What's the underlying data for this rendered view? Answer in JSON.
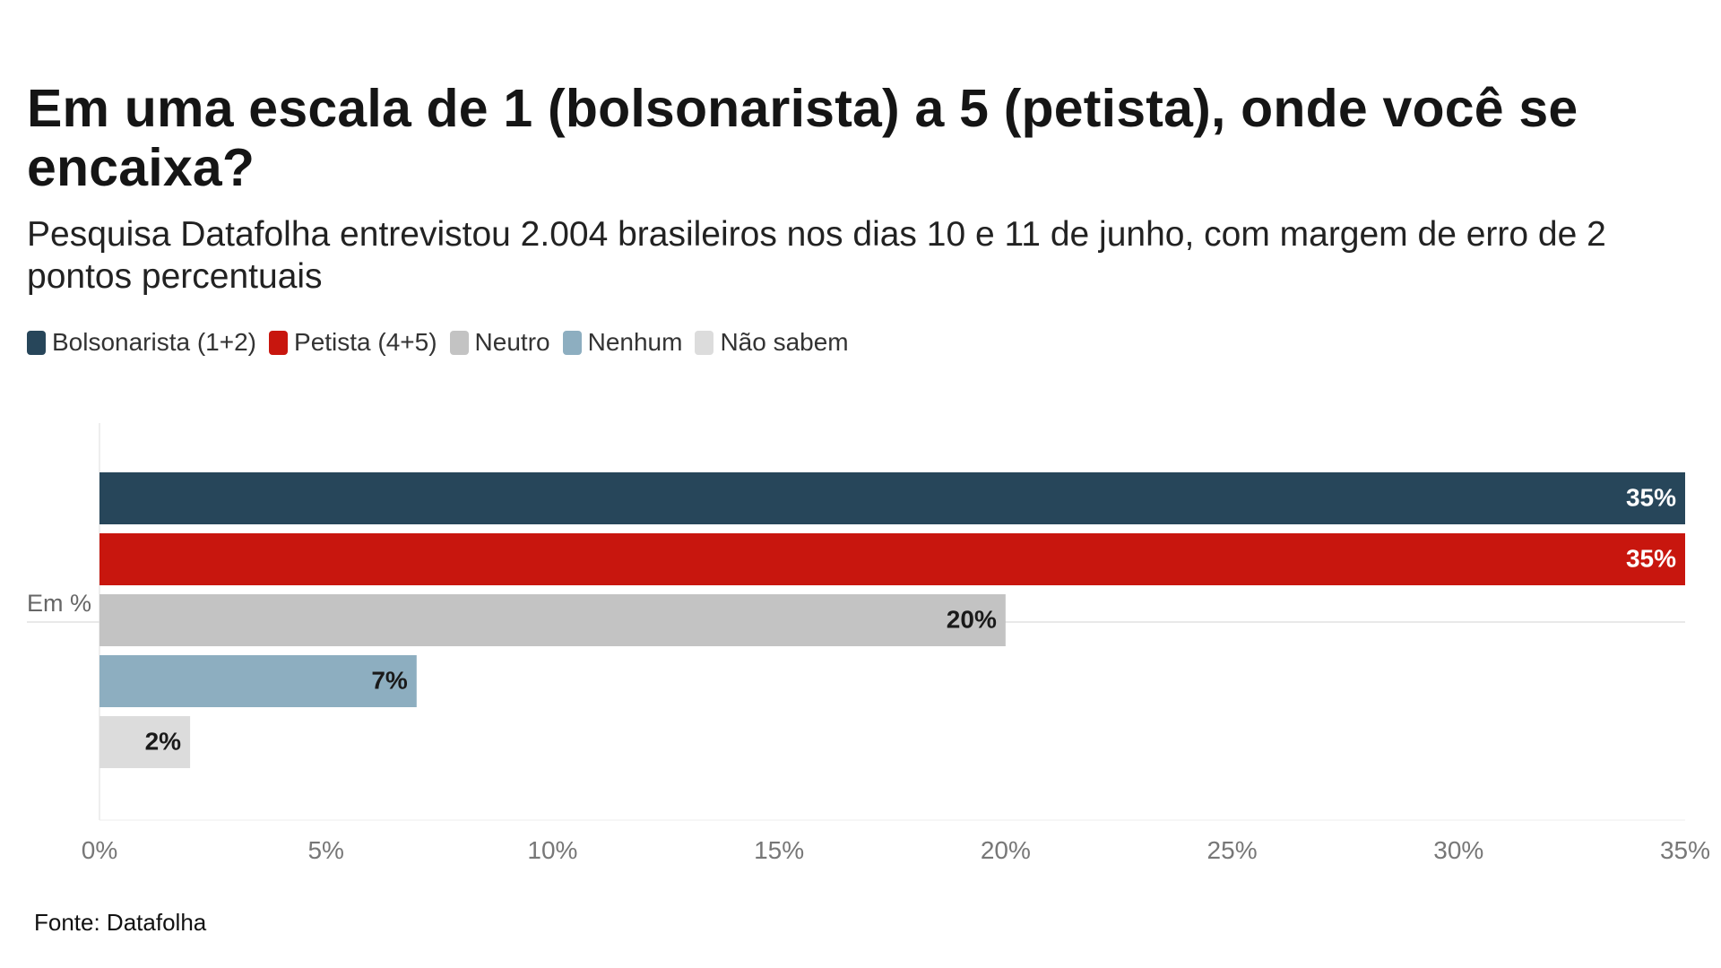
{
  "title": "Em uma escala de 1 (bolsonarista) a 5 (petista), onde você se encaixa?",
  "subtitle": "Pesquisa Datafolha entrevistou 2.004 brasileiros nos dias 10 e 11 de junho, com margem de erro de 2 pontos percentuais",
  "source": "Fonte: Datafolha",
  "legend": [
    {
      "label": "Bolsonarista (1+2)",
      "color": "#27465a"
    },
    {
      "label": "Petista (4+5)",
      "color": "#c8160e"
    },
    {
      "label": "Neutro",
      "color": "#c3c3c3"
    },
    {
      "label": "Nenhum",
      "color": "#8daec0"
    },
    {
      "label": "Não sabem",
      "color": "#dcdcdc"
    }
  ],
  "chart_data": {
    "type": "bar",
    "orientation": "horizontal",
    "category_label": "Em %",
    "xlim": [
      0,
      35
    ],
    "xticks": [
      "0%",
      "5%",
      "10%",
      "15%",
      "20%",
      "25%",
      "30%",
      "35%"
    ],
    "xtick_values": [
      0,
      5,
      10,
      15,
      20,
      25,
      30,
      35
    ],
    "series": [
      {
        "name": "Bolsonarista (1+2)",
        "value": 35,
        "label": "35%",
        "color": "#27465a",
        "label_color": "#ffffff"
      },
      {
        "name": "Petista (4+5)",
        "value": 35,
        "label": "35%",
        "color": "#c8160e",
        "label_color": "#ffffff"
      },
      {
        "name": "Neutro",
        "value": 20,
        "label": "20%",
        "color": "#c3c3c3",
        "label_color": "#1a1a1a"
      },
      {
        "name": "Nenhum",
        "value": 7,
        "label": "7%",
        "color": "#8daec0",
        "label_color": "#1a1a1a"
      },
      {
        "name": "Não sabem",
        "value": 2,
        "label": "2%",
        "color": "#dcdcdc",
        "label_color": "#1a1a1a"
      }
    ],
    "grid": false
  }
}
